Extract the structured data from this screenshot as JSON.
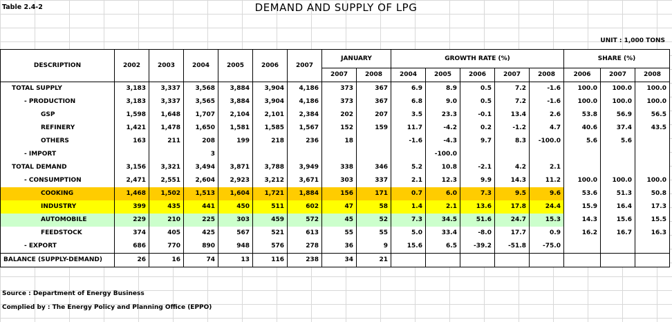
{
  "table_id": "Table 2.4-2",
  "title": "DEMAND AND SUPPLY OF LPG",
  "unit": "UNIT : 1,000 TONS",
  "headers": {
    "description": "DESCRIPTION",
    "years": [
      "2002",
      "2003",
      "2004",
      "2005",
      "2006",
      "2007"
    ],
    "january": "JANUARY",
    "january_years": [
      "2007",
      "2008"
    ],
    "growth_rate": "GROWTH RATE  (%)",
    "growth_years": [
      "2004",
      "2005",
      "2006",
      "2007",
      "2008"
    ],
    "share": "SHARE (%)",
    "share_years": [
      "2006",
      "2007",
      "2008"
    ]
  },
  "rows": [
    {
      "label": "TOTAL  SUPPLY",
      "level": 0,
      "years": [
        "3,183",
        "3,337",
        "3,568",
        "3,884",
        "3,904",
        "4,186"
      ],
      "jan": [
        "373",
        "367"
      ],
      "growth": [
        "6.9",
        "8.9",
        "0.5",
        "7.2",
        "-1.6"
      ],
      "share": [
        "100.0",
        "100.0",
        "100.0"
      ]
    },
    {
      "label": "- PRODUCTION",
      "level": 1,
      "years": [
        "3,183",
        "3,337",
        "3,565",
        "3,884",
        "3,904",
        "4,186"
      ],
      "jan": [
        "373",
        "367"
      ],
      "growth": [
        "6.8",
        "9.0",
        "0.5",
        "7.2",
        "-1.6"
      ],
      "share": [
        "100.0",
        "100.0",
        "100.0"
      ]
    },
    {
      "label": "GSP",
      "level": 2,
      "years": [
        "1,598",
        "1,648",
        "1,707",
        "2,104",
        "2,101",
        "2,384"
      ],
      "jan": [
        "202",
        "207"
      ],
      "growth": [
        "3.5",
        "23.3",
        "-0.1",
        "13.4",
        "2.6"
      ],
      "share": [
        "53.8",
        "56.9",
        "56.5"
      ]
    },
    {
      "label": "REFINERY",
      "level": 2,
      "years": [
        "1,421",
        "1,478",
        "1,650",
        "1,581",
        "1,585",
        "1,567"
      ],
      "jan": [
        "152",
        "159"
      ],
      "growth": [
        "11.7",
        "-4.2",
        "0.2",
        "-1.2",
        "4.7"
      ],
      "share": [
        "40.6",
        "37.4",
        "43.5"
      ]
    },
    {
      "label": "OTHERS",
      "level": 2,
      "years": [
        "163",
        "211",
        "208",
        "199",
        "218",
        "236"
      ],
      "jan": [
        "18",
        ""
      ],
      "growth": [
        "-1.6",
        "-4.3",
        "9.7",
        "8.3",
        "-100.0"
      ],
      "share": [
        "5.6",
        "5.6",
        ""
      ]
    },
    {
      "label": "- IMPORT",
      "level": 1,
      "years": [
        "",
        "",
        "3",
        "",
        "",
        ""
      ],
      "jan": [
        "",
        ""
      ],
      "growth": [
        "",
        "-100.0",
        "",
        "",
        ""
      ],
      "share": [
        "",
        "",
        ""
      ]
    },
    {
      "label": "TOTAL  DEMAND",
      "level": 0,
      "years": [
        "3,156",
        "3,321",
        "3,494",
        "3,871",
        "3,788",
        "3,949"
      ],
      "jan": [
        "338",
        "346"
      ],
      "growth": [
        "5.2",
        "10.8",
        "-2.1",
        "4.2",
        "2.1"
      ],
      "share": [
        "",
        "",
        ""
      ]
    },
    {
      "label": "- CONSUMPTION",
      "level": 1,
      "years": [
        "2,471",
        "2,551",
        "2,604",
        "2,923",
        "3,212",
        "3,671"
      ],
      "jan": [
        "303",
        "337"
      ],
      "growth": [
        "2.1",
        "12.3",
        "9.9",
        "14.3",
        "11.2"
      ],
      "share": [
        "100.0",
        "100.0",
        "100.0"
      ]
    },
    {
      "label": "COOKING",
      "level": 2,
      "highlight": "cooking",
      "years": [
        "1,468",
        "1,502",
        "1,513",
        "1,604",
        "1,721",
        "1,884"
      ],
      "jan": [
        "156",
        "171"
      ],
      "growth": [
        "0.7",
        "6.0",
        "7.3",
        "9.5",
        "9.6"
      ],
      "share": [
        "53.6",
        "51.3",
        "50.8"
      ]
    },
    {
      "label": "INDUSTRY",
      "level": 2,
      "highlight": "industry",
      "years": [
        "399",
        "435",
        "441",
        "450",
        "511",
        "602"
      ],
      "jan": [
        "47",
        "58"
      ],
      "growth": [
        "1.4",
        "2.1",
        "13.6",
        "17.8",
        "24.4"
      ],
      "share": [
        "15.9",
        "16.4",
        "17.3"
      ]
    },
    {
      "label": "AUTOMOBILE",
      "level": 2,
      "highlight": "automobile",
      "years": [
        "229",
        "210",
        "225",
        "303",
        "459",
        "572"
      ],
      "jan": [
        "45",
        "52"
      ],
      "growth": [
        "7.3",
        "34.5",
        "51.6",
        "24.7",
        "15.3"
      ],
      "share": [
        "14.3",
        "15.6",
        "15.5"
      ]
    },
    {
      "label": "FEEDSTOCK",
      "level": 2,
      "years": [
        "374",
        "405",
        "425",
        "567",
        "521",
        "613"
      ],
      "jan": [
        "55",
        "55"
      ],
      "growth": [
        "5.0",
        "33.4",
        "-8.0",
        "17.7",
        "0.9"
      ],
      "share": [
        "16.2",
        "16.7",
        "16.3"
      ]
    },
    {
      "label": "- EXPORT",
      "level": 1,
      "years": [
        "686",
        "770",
        "890",
        "948",
        "576",
        "278"
      ],
      "jan": [
        "36",
        "9"
      ],
      "growth": [
        "15.6",
        "6.5",
        "-39.2",
        "-51.8",
        "-75.0"
      ],
      "share": [
        "",
        "",
        ""
      ]
    },
    {
      "label": "BALANCE (SUPPLY-DEMAND)",
      "level": -1,
      "years": [
        "26",
        "16",
        "74",
        "13",
        "116",
        "238"
      ],
      "jan": [
        "34",
        "21"
      ],
      "growth": [
        "",
        "",
        "",
        "",
        ""
      ],
      "share": [
        "",
        "",
        ""
      ]
    }
  ],
  "source": "Source : Department of Energy Business",
  "compiled_by": "Complied by : The Energy Policy  and Planning Office (EPPO)",
  "colors": {
    "cooking": "#ffcc00",
    "industry": "#ffff00",
    "automobile": "#ccffcc"
  }
}
